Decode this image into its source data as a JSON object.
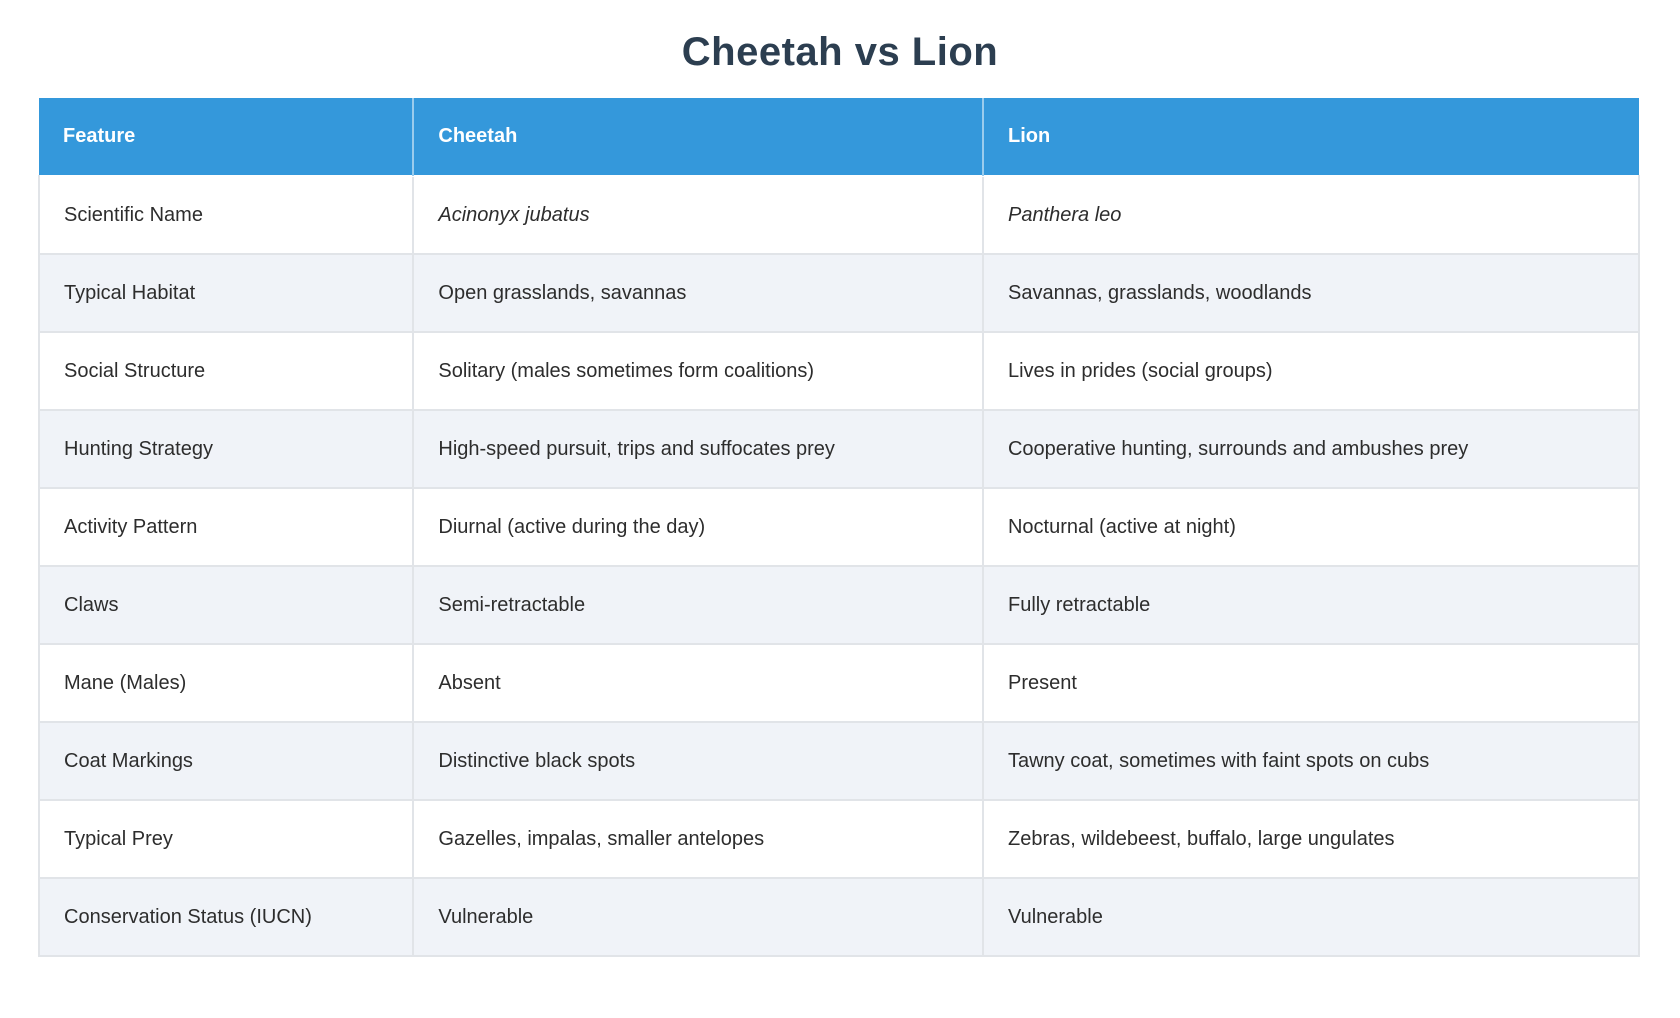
{
  "page": {
    "title": "Cheetah vs Lion"
  },
  "table": {
    "headers": [
      "Feature",
      "Cheetah",
      "Lion"
    ],
    "rows": [
      {
        "feature": "Scientific Name",
        "cheetah": "Acinonyx jubatus",
        "lion": "Panthera leo",
        "italic": true
      },
      {
        "feature": "Typical Habitat",
        "cheetah": "Open grasslands, savannas",
        "lion": "Savannas, grasslands, woodlands",
        "italic": false
      },
      {
        "feature": "Social Structure",
        "cheetah": "Solitary (males sometimes form coalitions)",
        "lion": "Lives in prides (social groups)",
        "italic": false
      },
      {
        "feature": "Hunting Strategy",
        "cheetah": "High-speed pursuit, trips and suffocates prey",
        "lion": "Cooperative hunting, surrounds and ambushes prey",
        "italic": false
      },
      {
        "feature": "Activity Pattern",
        "cheetah": "Diurnal (active during the day)",
        "lion": "Nocturnal (active at night)",
        "italic": false
      },
      {
        "feature": "Claws",
        "cheetah": "Semi-retractable",
        "lion": "Fully retractable",
        "italic": false
      },
      {
        "feature": "Mane (Males)",
        "cheetah": "Absent",
        "lion": "Present",
        "italic": false
      },
      {
        "feature": "Coat Markings",
        "cheetah": "Distinctive black spots",
        "lion": "Tawny coat, sometimes with faint spots on cubs",
        "italic": false
      },
      {
        "feature": "Typical Prey",
        "cheetah": "Gazelles, impalas, smaller antelopes",
        "lion": "Zebras, wildebeest, buffalo, large ungulates",
        "italic": false
      },
      {
        "feature": "Conservation Status (IUCN)",
        "cheetah": "Vulnerable",
        "lion": "Vulnerable",
        "italic": false
      }
    ]
  },
  "colors": {
    "header_bg": "#3498db",
    "header_text": "#ffffff",
    "title_text": "#2c3e50",
    "body_text": "#2d2d2d",
    "stripe_bg": "#f0f3f8",
    "border": "#e1e4e8"
  }
}
